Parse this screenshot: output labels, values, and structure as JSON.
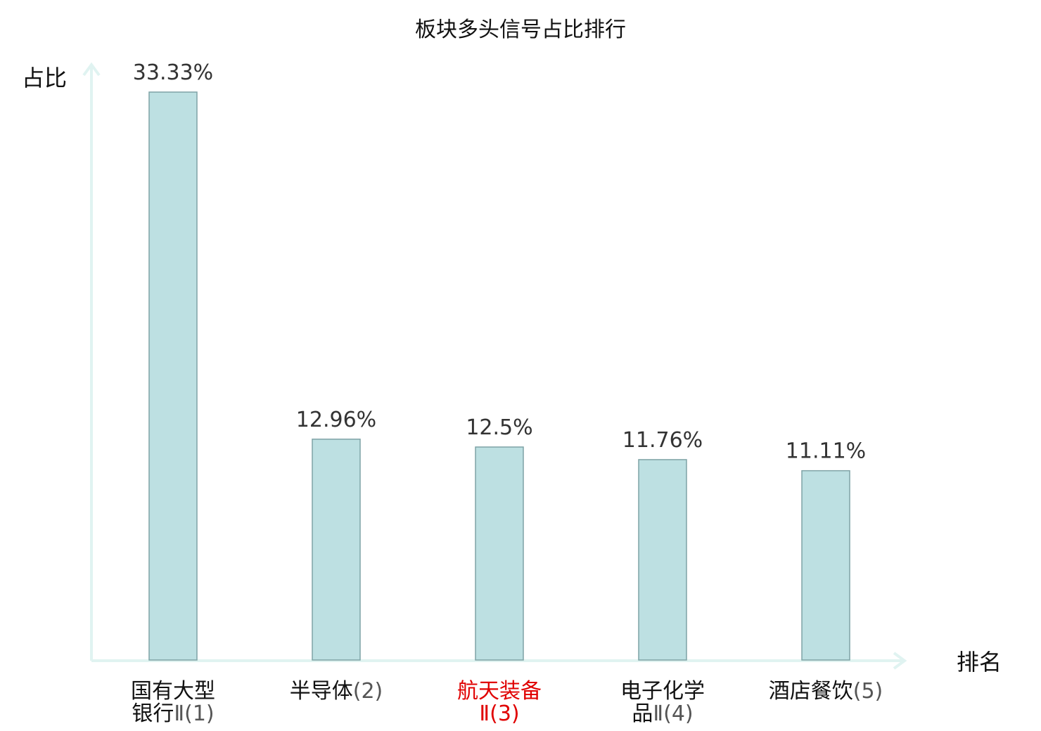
{
  "chart_data": {
    "type": "bar",
    "title": "板块多头信号占比排行",
    "ylabel": "占比",
    "xlabel": "排名",
    "categories": [
      {
        "lines": [
          "国有大型",
          "银行Ⅱ(1)"
        ],
        "highlight": false
      },
      {
        "lines": [
          "半导体(2)"
        ],
        "highlight": false
      },
      {
        "lines": [
          "航天装备",
          "Ⅱ(3)"
        ],
        "highlight": true
      },
      {
        "lines": [
          "电子化学",
          "品Ⅱ(4)"
        ],
        "highlight": false
      },
      {
        "lines": [
          "酒店餐饮(5)"
        ],
        "highlight": false
      }
    ],
    "values": [
      33.33,
      12.96,
      12.5,
      11.76,
      11.11
    ],
    "value_labels": [
      "33.33%",
      "12.96%",
      "12.5%",
      "11.76%",
      "11.11%"
    ],
    "ylim": [
      0,
      33.33
    ],
    "grid": false,
    "colors": {
      "bar_fill": "#bde0e2",
      "bar_stroke": "#7fa3a6",
      "axis": "#e0f3f1",
      "highlight": "#e00000"
    }
  }
}
